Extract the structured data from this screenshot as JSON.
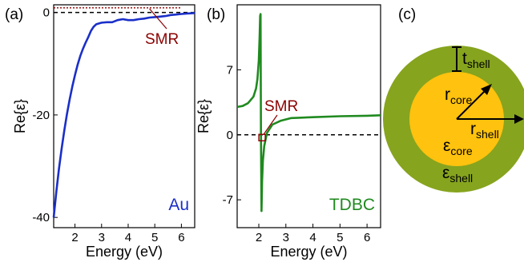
{
  "chart_data": [
    {
      "panel_label": "(a)",
      "type": "line",
      "xlabel": "Energy (eV)",
      "ylabel": "Re{ε}",
      "xlim": [
        1.2,
        6.5
      ],
      "ylim": [
        -42,
        1.5
      ],
      "x_ticks": [
        "2",
        "3",
        "4",
        "5",
        "6"
      ],
      "y_ticks": [
        "0",
        "-20",
        "-40"
      ],
      "series": [
        {
          "name": "Au",
          "color": "#1a2fc8",
          "x": [
            1.2,
            1.3,
            1.4,
            1.5,
            1.6,
            1.7,
            1.8,
            1.9,
            2.0,
            2.1,
            2.2,
            2.3,
            2.4,
            2.5,
            2.6,
            2.7,
            2.8,
            3.0,
            3.2,
            3.4,
            3.6,
            3.8,
            4.0,
            4.2,
            4.4,
            4.6,
            4.8,
            5.0,
            5.2,
            5.4,
            5.6,
            5.8,
            6.0,
            6.2,
            6.4,
            6.5
          ],
          "y": [
            -40.0,
            -35.0,
            -30.5,
            -26.5,
            -23.0,
            -19.8,
            -17.0,
            -14.5,
            -12.2,
            -10.2,
            -8.5,
            -7.1,
            -5.9,
            -4.8,
            -3.6,
            -2.8,
            -2.3,
            -2.0,
            -1.9,
            -1.9,
            -1.5,
            -1.3,
            -1.5,
            -1.5,
            -1.3,
            -1.2,
            -1.0,
            -0.9,
            -0.8,
            -0.7,
            -0.5,
            -0.4,
            -0.3,
            -0.2,
            -0.15,
            -0.1
          ]
        }
      ],
      "reference_line": {
        "y": 0,
        "style": "dashed",
        "color": "#000000"
      },
      "smr_line": {
        "y": 0.9,
        "x_start": 1.2,
        "x_end": 6.0,
        "color": "#8b0000",
        "style": "dotted"
      },
      "annotations": [
        {
          "text": "SMR",
          "color": "#8b0000"
        },
        {
          "text": "Au",
          "color": "#1a2fc8"
        }
      ]
    },
    {
      "panel_label": "(b)",
      "type": "line",
      "xlabel": "Energy (eV)",
      "ylabel": "Re{ε}",
      "xlim": [
        1.2,
        6.5
      ],
      "ylim": [
        -10,
        14
      ],
      "x_ticks": [
        "2",
        "3",
        "4",
        "5",
        "6"
      ],
      "y_ticks": [
        "7",
        "0",
        "-7"
      ],
      "series": [
        {
          "name": "TDBC",
          "color": "#1f8a1f",
          "x": [
            1.2,
            1.4,
            1.6,
            1.8,
            1.9,
            1.95,
            2.0,
            2.03,
            2.05,
            2.065,
            2.08,
            2.1,
            2.12,
            2.15,
            2.2,
            2.3,
            2.5,
            2.8,
            3.2,
            4.0,
            5.0,
            6.0,
            6.5
          ],
          "y": [
            3.0,
            3.1,
            3.4,
            4.1,
            5.0,
            6.0,
            8.0,
            10.5,
            12.8,
            13.0,
            0.0,
            -8.2,
            -5.0,
            -2.8,
            -1.2,
            0.2,
            1.1,
            1.5,
            1.8,
            1.9,
            2.0,
            2.05,
            2.1
          ]
        }
      ],
      "reference_line": {
        "y": 0,
        "style": "dashed",
        "color": "#000000"
      },
      "smr_marker": {
        "x": 2.12,
        "y": -0.3,
        "color": "#8b0000",
        "shape": "square"
      },
      "annotations": [
        {
          "text": "SMR",
          "color": "#8b0000"
        },
        {
          "text": "TDBC",
          "color": "#1f8a1f"
        }
      ]
    }
  ],
  "schematic": {
    "panel_label": "(c)",
    "shell_color": "#86a41e",
    "core_color": "#ffc20e",
    "labels": {
      "t": "t",
      "t_sub": "shell",
      "r_core": "r",
      "r_core_sub": "core",
      "r_shell": "r",
      "r_shell_sub": "shell",
      "eps_core": "ε",
      "eps_core_sub": "core",
      "eps_shell": "ε",
      "eps_shell_sub": "shell"
    }
  }
}
